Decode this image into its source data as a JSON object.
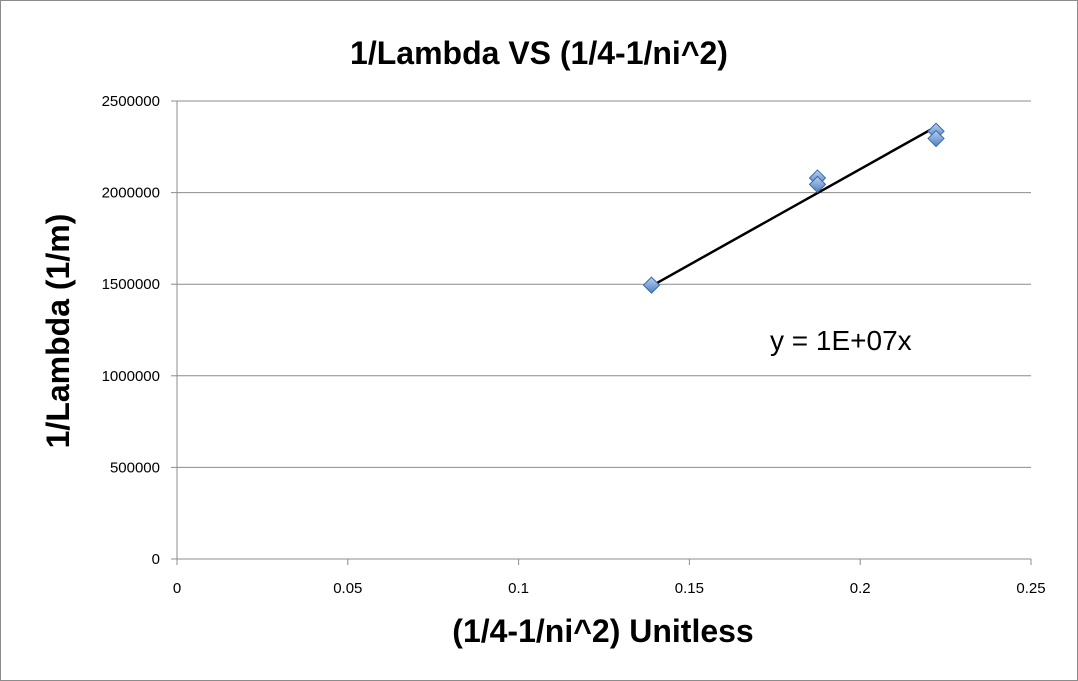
{
  "chart_data": {
    "type": "scatter",
    "title": "1/Lambda VS (1/4-1/ni^2)",
    "xlabel": "(1/4-1/ni^2) Unitless",
    "ylabel": "1/Lambda (1/m)",
    "xlim": [
      0,
      0.25
    ],
    "ylim": [
      0,
      2500000
    ],
    "x_ticks": [
      "0",
      "0.05",
      "0.1",
      "0.15",
      "0.2",
      "0.25"
    ],
    "y_ticks": [
      "0",
      "500000",
      "1000000",
      "1500000",
      "2000000",
      "2500000"
    ],
    "grid": "horizontal",
    "marker": "diamond",
    "marker_color": "#4f81bd",
    "points": [
      {
        "x": 0.1389,
        "y": 1495000
      },
      {
        "x": 0.1875,
        "y": 2080000
      },
      {
        "x": 0.1875,
        "y": 2045000
      },
      {
        "x": 0.2222,
        "y": 2335000
      },
      {
        "x": 0.2222,
        "y": 2295000
      }
    ],
    "trendline": {
      "type": "linear",
      "x_range": [
        0.1389,
        0.2222
      ],
      "y_range": [
        1490000,
        2360000
      ],
      "equation": "y = 1E+07x",
      "color": "#000000"
    }
  }
}
